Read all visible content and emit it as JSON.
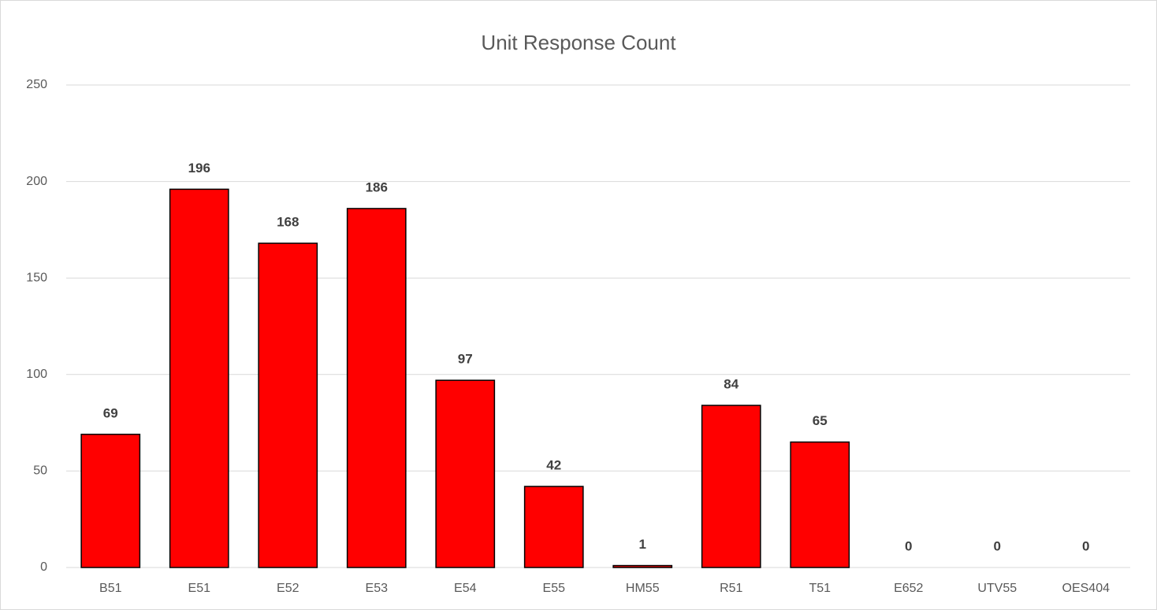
{
  "chart_data": {
    "type": "bar",
    "title": "Unit Response Count",
    "categories": [
      "B51",
      "E51",
      "E52",
      "E53",
      "E54",
      "E55",
      "HM55",
      "R51",
      "T51",
      "E652",
      "UTV55",
      "OES404"
    ],
    "values": [
      69,
      196,
      168,
      186,
      97,
      42,
      1,
      84,
      65,
      0,
      0,
      0
    ],
    "color": "#ff0000",
    "ylim": [
      0,
      250
    ],
    "yticks": [
      0,
      50,
      100,
      150,
      200,
      250
    ],
    "grid": true
  }
}
